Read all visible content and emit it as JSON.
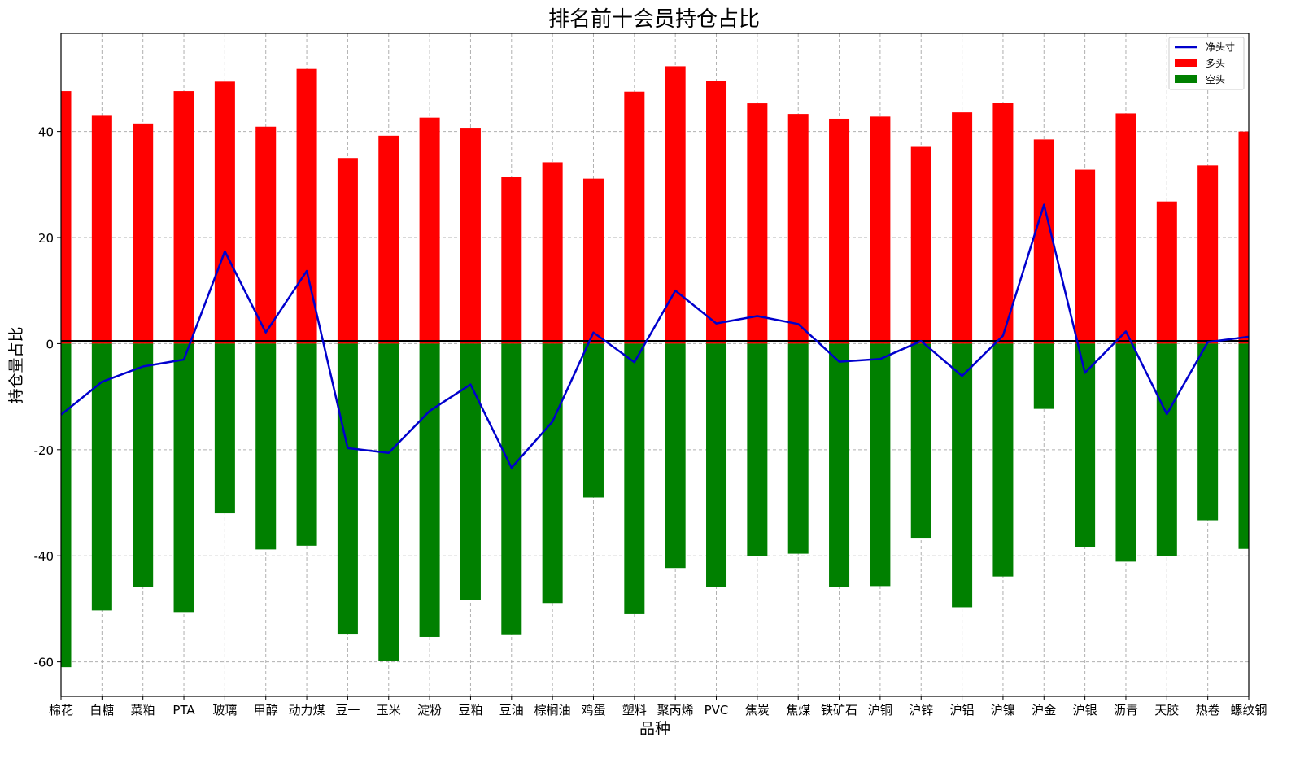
{
  "chart_data": {
    "type": "bar",
    "title": "排名前十会员持仓占比",
    "xlabel": "品种",
    "ylabel": "持仓量占比",
    "categories": [
      "棉花",
      "白糖",
      "菜粕",
      "PTA",
      "玻璃",
      "甲醇",
      "动力煤",
      "豆一",
      "玉米",
      "淀粉",
      "豆粕",
      "豆油",
      "棕榈油",
      "鸡蛋",
      "塑料",
      "聚丙烯",
      "PVC",
      "焦炭",
      "焦煤",
      "铁矿石",
      "沪铜",
      "沪锌",
      "沪铝",
      "沪镍",
      "沪金",
      "沪银",
      "沥青",
      "天胶",
      "热卷",
      "螺纹钢"
    ],
    "series": [
      {
        "name": "多头",
        "type": "bar",
        "color": "#ff0000",
        "values": [
          47.6,
          43.1,
          41.5,
          47.6,
          49.4,
          40.9,
          51.8,
          35.0,
          39.2,
          42.6,
          40.7,
          31.4,
          34.2,
          31.1,
          47.5,
          52.3,
          49.6,
          45.3,
          43.3,
          42.4,
          42.8,
          37.1,
          43.6,
          45.4,
          38.5,
          32.8,
          43.4,
          26.8,
          33.6,
          40.0
        ]
      },
      {
        "name": "空头",
        "type": "bar",
        "color": "#008000",
        "values": [
          -61.0,
          -50.3,
          -45.8,
          -50.6,
          -32.0,
          -38.8,
          -38.1,
          -54.7,
          -59.8,
          -55.3,
          -48.4,
          -54.8,
          -48.9,
          -29.0,
          -51.0,
          -42.3,
          -45.8,
          -40.1,
          -39.6,
          -45.8,
          -45.7,
          -36.6,
          -49.7,
          -43.9,
          -12.3,
          -38.3,
          -41.1,
          -40.1,
          -33.3,
          -38.7
        ]
      },
      {
        "name": "净头寸",
        "type": "line",
        "color": "#0000cc",
        "values": [
          -13.4,
          -7.2,
          -4.3,
          -3.0,
          17.4,
          2.1,
          13.7,
          -19.7,
          -20.6,
          -12.7,
          -7.7,
          -23.4,
          -14.7,
          2.1,
          -3.5,
          10.0,
          3.8,
          5.2,
          3.7,
          -3.4,
          -2.9,
          0.5,
          -6.1,
          1.5,
          26.2,
          -5.5,
          2.3,
          -13.3,
          0.3,
          1.3
        ]
      }
    ],
    "yticks": [
      -60,
      -40,
      -20,
      0,
      20,
      40
    ],
    "ylim": [
      -66.5,
      58.5
    ],
    "grid": true,
    "legend_position": "top-right"
  }
}
